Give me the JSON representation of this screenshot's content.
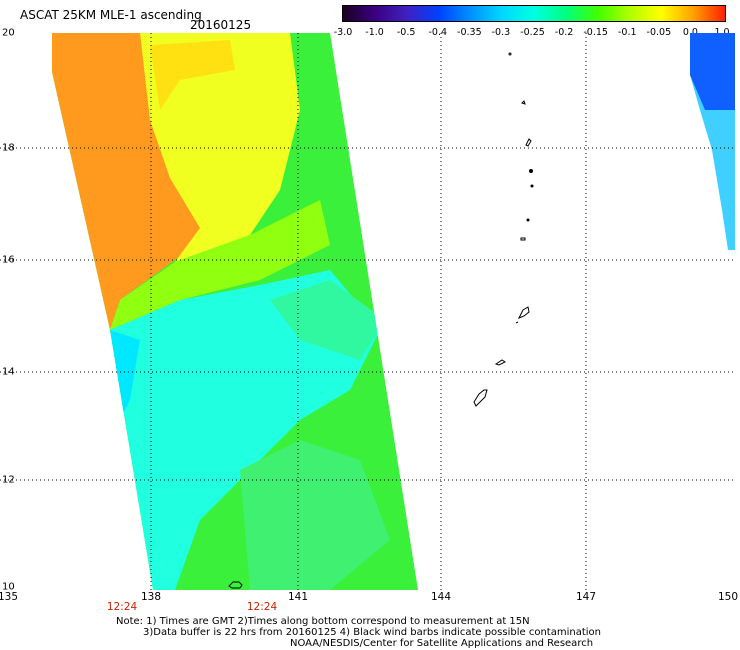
{
  "title": "ASCAT 25KM MLE-1 ascending",
  "date": "20160125",
  "colorbar": {
    "labels": [
      "-3.0",
      "-1.0",
      "-0.5",
      "-0.4",
      "-0.35",
      "-0.3",
      "-0.25",
      "-0.2",
      "-0.15",
      "-0.1",
      "-0.05",
      "0.0",
      "1.0"
    ],
    "colors": [
      "#1a0022",
      "#3a0080",
      "#4020c0",
      "#0040ff",
      "#0090ff",
      "#00d8ff",
      "#00ffe0",
      "#00ff80",
      "#40ff00",
      "#b0ff00",
      "#ffff00",
      "#ffa000",
      "#ff2000"
    ]
  },
  "axes": {
    "lon_ticks": [
      "135",
      "138",
      "141",
      "144",
      "147",
      "150"
    ],
    "lat_ticks": [
      "20",
      "18",
      "16",
      "14",
      "12",
      "10"
    ]
  },
  "time_labels": [
    "12:24",
    "12:24"
  ],
  "notes": {
    "line1": "Note: 1) Times are GMT 2)Times along bottom correspond to measurement at 15N",
    "line2": "3)Data buffer is 22 hrs from 20160125 4) Black wind barbs indicate possible contamination",
    "line3": "NOAA/NESDIS/Center for Satellite Applications and Research"
  },
  "colors": {
    "orange": "#ff9a1e",
    "yellow": "#f0ff10",
    "green": "#38f038",
    "cyan": "#20ffe0",
    "blue": "#1060ff"
  }
}
